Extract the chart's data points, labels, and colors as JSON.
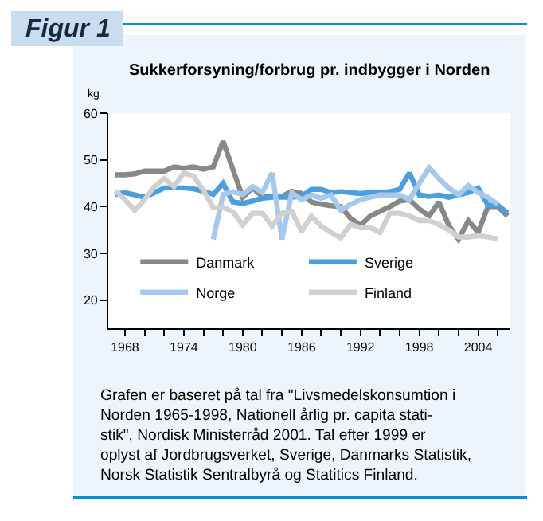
{
  "chart_data": {
    "type": "line",
    "title": "Figur 1",
    "subtitle": "Sukkerforsyning/forbrug pr. indbygger i Norden",
    "ylabel": "kg",
    "x": [
      1967,
      1968,
      1969,
      1970,
      1971,
      1972,
      1973,
      1974,
      1975,
      1976,
      1977,
      1978,
      1979,
      1980,
      1981,
      1982,
      1983,
      1984,
      1985,
      1986,
      1987,
      1988,
      1989,
      1990,
      1991,
      1992,
      1993,
      1994,
      1995,
      1996,
      1997,
      1998,
      1999,
      2000,
      2001,
      2002,
      2003,
      2004,
      2005,
      2006,
      2007
    ],
    "series": [
      {
        "name": "Danmark",
        "color": "#888888",
        "values": [
          46.8,
          46.8,
          47,
          47.6,
          47.6,
          47.6,
          48.5,
          48.2,
          48.5,
          48,
          48.5,
          54,
          48,
          42,
          44,
          42.2,
          42.2,
          42.2,
          43.3,
          42.8,
          41,
          40.5,
          40.2,
          40,
          37.5,
          36,
          38,
          39,
          40,
          41.2,
          41.5,
          39.5,
          38,
          41,
          36,
          33,
          37,
          34.5,
          40,
          40,
          38
        ]
      },
      {
        "name": "Sverige",
        "color": "#4a9fdc",
        "values": [
          42.6,
          43,
          42.5,
          42,
          43,
          44,
          44,
          44,
          43.8,
          43.3,
          42.6,
          45,
          41,
          40.7,
          41.2,
          41.8,
          42,
          42,
          42,
          42.2,
          43.7,
          43.7,
          43,
          43.2,
          43,
          42.8,
          43,
          43,
          43.2,
          43.7,
          47.2,
          42.5,
          42.2,
          42.5,
          42,
          42.5,
          43,
          44,
          40.3,
          40.3,
          38.6
        ]
      },
      {
        "name": "Norge",
        "color": "#a6c8ea",
        "values": [
          null,
          null,
          null,
          null,
          null,
          null,
          null,
          null,
          null,
          null,
          33,
          42.6,
          43.2,
          42.6,
          44.3,
          43,
          47.2,
          33,
          43,
          41.5,
          42.5,
          41.8,
          42.5,
          39.2,
          40.5,
          41.5,
          42,
          42.5,
          42.5,
          42.5,
          41.5,
          45,
          48.3,
          46,
          44,
          42.5,
          44.5,
          43,
          42,
          40.5,
          null
        ]
      },
      {
        "name": "Finland",
        "color": "#d0d0d0",
        "values": [
          43.4,
          41.5,
          39.2,
          41.5,
          44.3,
          46,
          44.3,
          47.2,
          46.5,
          43.5,
          39.8,
          39.8,
          38.9,
          36.1,
          38.6,
          38.6,
          35.8,
          38.6,
          39,
          34.7,
          38,
          35.8,
          34.5,
          33.3,
          36.2,
          35.5,
          35.5,
          34.5,
          38.6,
          38.6,
          38,
          37,
          37,
          36.2,
          35,
          33.5,
          33.5,
          33.8,
          33.5,
          33.1,
          null
        ]
      }
    ],
    "xlim": [
      1966.3,
      2007.2
    ],
    "xticks": [
      1968,
      {
        "value": 1970,
        "label": null
      },
      {
        "value": 1972,
        "label": null
      },
      1974,
      {
        "value": 1976,
        "label": null
      },
      {
        "value": 1978,
        "label": null
      },
      1980,
      {
        "value": 1982,
        "label": null
      },
      {
        "value": 1984,
        "label": null
      },
      1986,
      {
        "value": 1988,
        "label": null
      },
      {
        "value": 1990,
        "label": null
      },
      1992,
      {
        "value": 1994,
        "label": null
      },
      {
        "value": 1996,
        "label": null
      },
      1998,
      {
        "value": 2000,
        "label": null
      },
      {
        "value": 2002,
        "label": null
      },
      2004,
      {
        "value": 2006,
        "label": null
      }
    ],
    "ylim": [
      14,
      60
    ],
    "yticks": [
      20,
      30,
      40,
      50,
      60
    ],
    "legend": "bottom",
    "marker": "none",
    "line_style": "solid",
    "annotations": [
      "Grafen er baseret på tal fra \"Livsmedelskonsumtion i\nNorden 1965-1998, Nationell årlig pr. capita stati-\nstik\", Nordisk Ministerråd 2001. Tal efter 1999 er\noplyst af Jordbrugsverket, Sverige, Danmarks Statistik,\nNorsk Statistik Sentralbyrå og Statitics Finland."
    ]
  }
}
